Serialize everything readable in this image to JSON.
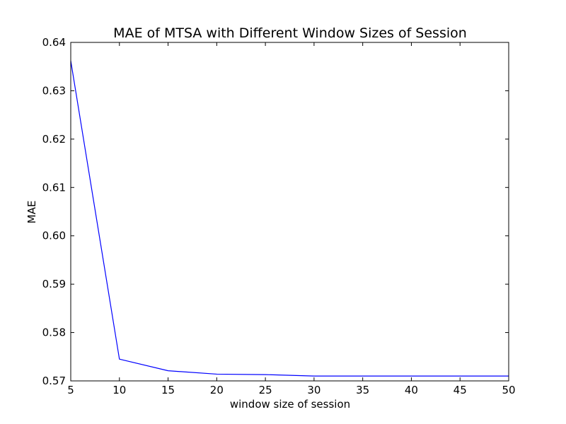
{
  "chart_data": {
    "type": "line",
    "title": "MAE of MTSA with Different Window Sizes of Session",
    "xlabel": "window size of session",
    "ylabel": "MAE",
    "xlim": [
      5,
      50
    ],
    "ylim": [
      0.57,
      0.64
    ],
    "x_ticks": [
      5,
      10,
      15,
      20,
      25,
      30,
      35,
      40,
      45,
      50
    ],
    "y_ticks": [
      0.57,
      0.58,
      0.59,
      0.6,
      0.61,
      0.62,
      0.63,
      0.64
    ],
    "x_tick_labels": [
      "5",
      "10",
      "15",
      "20",
      "25",
      "30",
      "35",
      "40",
      "45",
      "50"
    ],
    "y_tick_labels": [
      "0.57",
      "0.58",
      "0.59",
      "0.60",
      "0.61",
      "0.62",
      "0.63",
      "0.64"
    ],
    "grid": false,
    "legend": "none",
    "series": [
      {
        "color": "#0000ff",
        "x": [
          5,
          10,
          15,
          20,
          25,
          30,
          35,
          40,
          45,
          50
        ],
        "values": [
          0.6362,
          0.5745,
          0.5721,
          0.5714,
          0.5713,
          0.571,
          0.571,
          0.571,
          0.571,
          0.571
        ]
      }
    ]
  }
}
